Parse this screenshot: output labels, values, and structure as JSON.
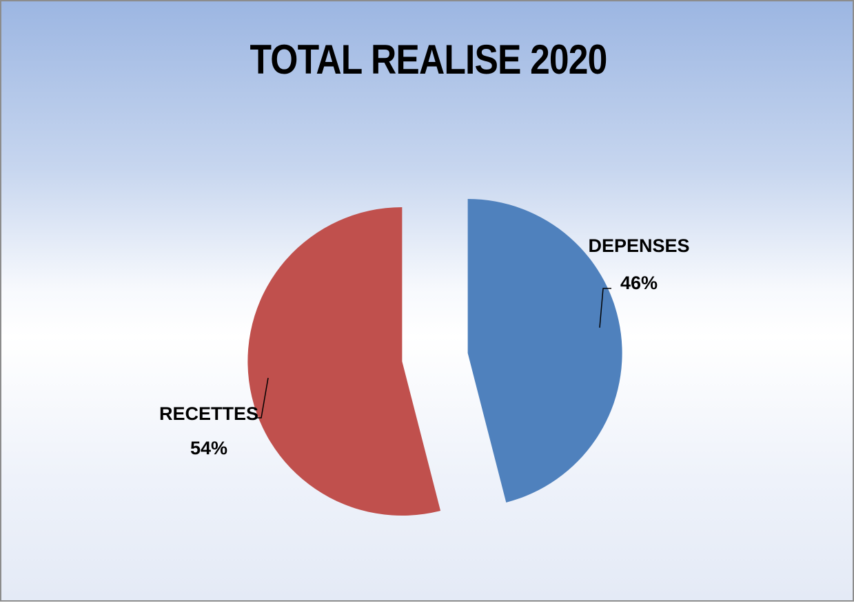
{
  "chart_data": {
    "type": "pie",
    "title": "TOTAL REALISE 2020",
    "slices": [
      {
        "name": "DEPENSES",
        "percent": 46,
        "label": "46%",
        "color": "#4f81bd"
      },
      {
        "name": "RECETTES",
        "percent": 54,
        "label": "54%",
        "color": "#c0504d"
      }
    ],
    "exploded": true,
    "legend": "none"
  }
}
